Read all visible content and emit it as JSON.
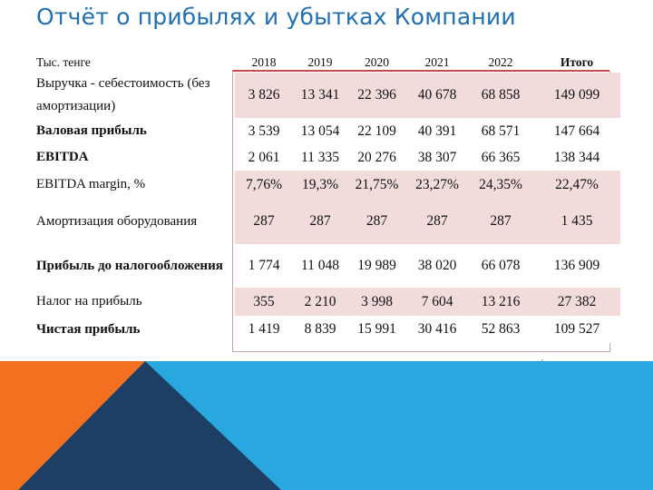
{
  "title": "Отчёт о прибылях и убытках Компании",
  "table": {
    "unit_label": "Тыс. тенге",
    "years": [
      "2018",
      "2019",
      "2020",
      "2021",
      "2022"
    ],
    "total_label": "Итого",
    "rows": [
      {
        "label": "Выручка - себестоимость (без амортизации)",
        "values": [
          "3 826",
          "13 341",
          "22 396",
          "40 678",
          "68 858",
          "149 099"
        ]
      },
      {
        "label": "Валовая прибыль",
        "values": [
          "3 539",
          "13 054",
          "22 109",
          "40 391",
          "68 571",
          "147 664"
        ]
      },
      {
        "label": "EBITDA",
        "values": [
          "2 061",
          "11 335",
          "20 276",
          "38 307",
          "66 365",
          "138 344"
        ]
      },
      {
        "label": "EBITDA margin, %",
        "values": [
          "7,76%",
          "19,3%",
          "21,75%",
          "23,27%",
          "24,35%",
          "22,47%"
        ]
      },
      {
        "label": "Амортизация оборудования",
        "values": [
          "287",
          "287",
          "287",
          "287",
          "287",
          "1 435"
        ]
      },
      {
        "label": "Прибыль до налогообложения",
        "values": [
          "1 774",
          "11 048",
          "19 989",
          "38 020",
          "66 078",
          "136 909"
        ]
      },
      {
        "label": "Налог на прибыль",
        "values": [
          "355",
          "2 210",
          "3 998",
          "7 604",
          "13 216",
          "27 382"
        ]
      },
      {
        "label": "Чистая прибыль",
        "values": [
          "1 419",
          "8 839",
          "15 991",
          "30 416",
          "52 863",
          "109 527"
        ]
      }
    ]
  },
  "colors": {
    "title": "#1f6fb2",
    "row_shade": "#f2dcdb",
    "header_rule": "#c0504d",
    "deco_blue": "#29a8e0",
    "deco_orange": "#f37021",
    "deco_navy": "#1d3f63"
  }
}
